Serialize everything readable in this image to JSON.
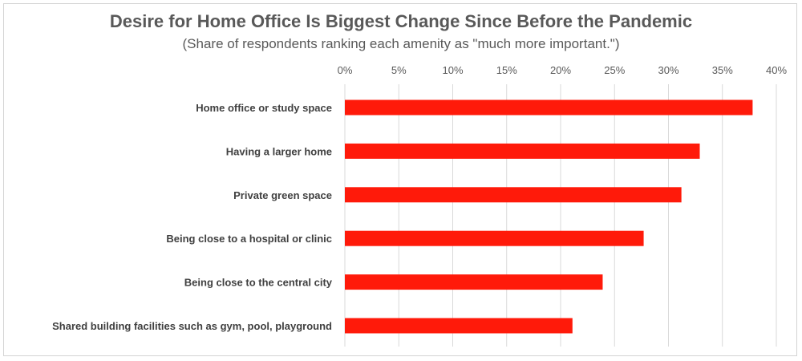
{
  "chart_data": {
    "type": "bar",
    "orientation": "horizontal",
    "title": "Desire for Home Office Is Biggest Change Since Before the Pandemic",
    "subtitle": "(Share of respondents ranking each amenity as \"much more important.\")",
    "categories": [
      "Home office or study space",
      "Having a larger home",
      "Private green space",
      "Being close to a hospital or clinic",
      "Being close to the central city",
      "Shared building facilities such as gym, pool, playground"
    ],
    "values": [
      0.378,
      0.329,
      0.312,
      0.277,
      0.239,
      0.211
    ],
    "xlim": [
      0,
      0.4
    ],
    "xticks": [
      0,
      0.05,
      0.1,
      0.15,
      0.2,
      0.25,
      0.3,
      0.35,
      0.4
    ],
    "xtick_labels": [
      "0%",
      "5%",
      "10%",
      "15%",
      "20%",
      "25%",
      "30%",
      "35%",
      "40%"
    ],
    "axis_position": "top",
    "grid": "vertical",
    "legend": "none",
    "bar_color": "#ff1a0a",
    "grid_color": "#d9d9d9"
  }
}
